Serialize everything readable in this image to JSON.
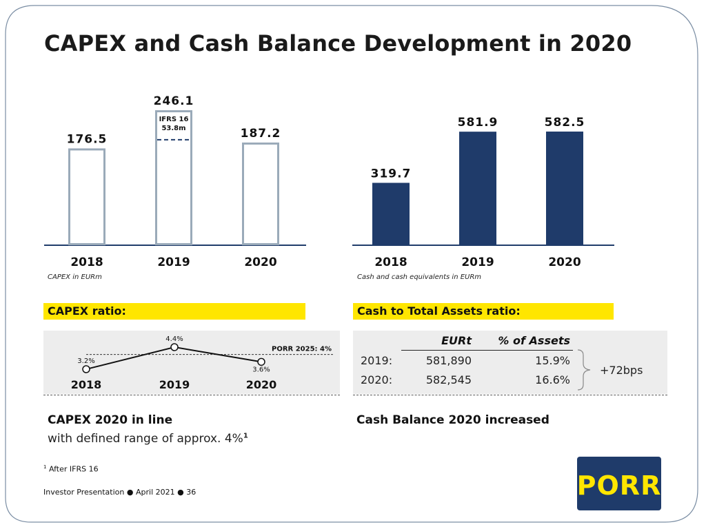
{
  "title": "CAPEX and Cash Balance Development in 2020",
  "colors": {
    "navy": "#1f3b6a",
    "outline": "#9aaab9",
    "yellow": "#ffe600",
    "grey": "#ededed"
  },
  "chart_data": [
    {
      "type": "bar",
      "title": "",
      "categories": [
        "2018",
        "2019",
        "2020"
      ],
      "values": [
        176.5,
        246.1,
        187.2
      ],
      "value_labels": [
        "176.5",
        "246.1",
        "187.2"
      ],
      "ylim": [
        0,
        246.1
      ],
      "style": "outline",
      "annotation": {
        "category": "2019",
        "label": "IFRS 16",
        "value_label": "53.8m",
        "value": 53.8
      },
      "caption": "CAPEX in EURm"
    },
    {
      "type": "bar",
      "title": "",
      "categories": [
        "2018",
        "2019",
        "2020"
      ],
      "values": [
        319.7,
        581.9,
        582.5
      ],
      "value_labels": [
        "319.7",
        "581.9",
        "582.5"
      ],
      "ylim": [
        0,
        582.5
      ],
      "style": "filled",
      "caption": "Cash and cash equivalents in EURm"
    },
    {
      "type": "line",
      "title": "CAPEX ratio:",
      "categories": [
        "2018",
        "2019",
        "2020"
      ],
      "values": [
        3.2,
        4.4,
        3.6
      ],
      "value_labels": [
        "3.2%",
        "4.4%",
        "3.6%"
      ],
      "reference": {
        "label": "PORR 2025: 4%",
        "value": 4
      }
    }
  ],
  "cash_ratio": {
    "label": "Cash to Total Assets ratio:",
    "headers": [
      "EURt",
      "% of Assets"
    ],
    "rows": [
      {
        "year": "2019:",
        "eurt": "581,890",
        "pct": "15.9%"
      },
      {
        "year": "2020:",
        "eurt": "582,545",
        "pct": "16.6%"
      }
    ],
    "change": "+72bps"
  },
  "capex_note": {
    "headline": "CAPEX 2020 in line",
    "detail": "with defined range of approx. 4%",
    "sup": "1"
  },
  "cash_note": "Cash Balance 2020 increased",
  "footnote": {
    "marker": "1",
    "text": "After IFRS 16"
  },
  "footer": {
    "text": "Investor Presentation",
    "date": "April 2021",
    "page": "36"
  },
  "logo": "PORR"
}
